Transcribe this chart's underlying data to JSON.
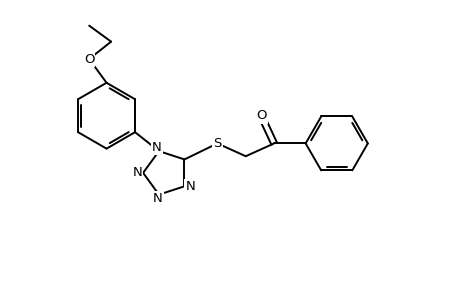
{
  "bg_color": "#ffffff",
  "bond_color": "#000000",
  "text_color": "#000000",
  "line_width": 1.4,
  "font_size": 9.5,
  "figsize": [
    4.6,
    3.0
  ],
  "dpi": 100,
  "xlim": [
    0,
    10
  ],
  "ylim": [
    0,
    6.5
  ]
}
